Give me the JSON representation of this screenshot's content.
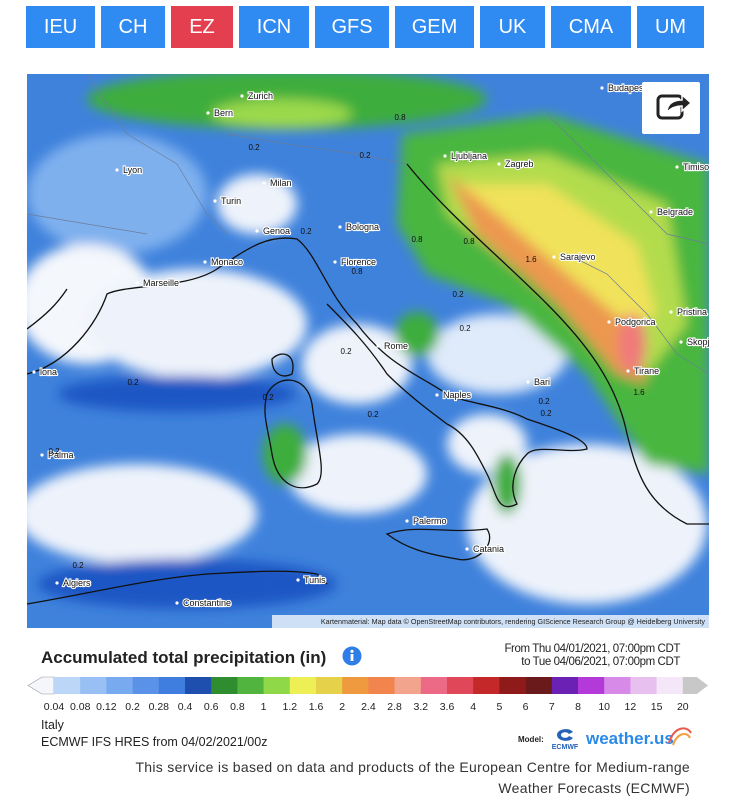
{
  "tabs": [
    {
      "label": "IEU",
      "active": false
    },
    {
      "label": "CH",
      "active": false
    },
    {
      "label": "EZ",
      "active": true
    },
    {
      "label": "ICN",
      "active": false
    },
    {
      "label": "GFS",
      "active": false
    },
    {
      "label": "GEM",
      "active": false
    },
    {
      "label": "UK",
      "active": false
    },
    {
      "label": "CMA",
      "active": false
    },
    {
      "label": "UM",
      "active": false
    }
  ],
  "map": {
    "cities": [
      "Budapest",
      "Zurich",
      "Bern",
      "Lyon",
      "Milan",
      "Turin",
      "Genoa",
      "Monaco",
      "Marseille",
      "Bologna",
      "Florence",
      "Ljubljana",
      "Zagreb",
      "Timisoara",
      "Belgrade",
      "Sarajevo",
      "Podgorica",
      "Pristina",
      "Skopje",
      "Tirane",
      "Rome",
      "Naples",
      "Bari",
      "lona",
      "Palma",
      "Palermo",
      "Catania",
      "Tunis",
      "Algiers",
      "Constantine"
    ],
    "value_labels": [
      "0.2",
      "0.2",
      "0.8",
      "0.2",
      "0.8",
      "0.8",
      "0.8",
      "1.6",
      "0.2",
      "0.2",
      "0.2",
      "0.2",
      "0.2",
      "0.2",
      "0.2",
      "0.2",
      "1.6",
      "0.2",
      "0.2"
    ],
    "attribution": "Kartenmaterial: Map data © OpenStreetMap contributors, rendering GIScience Research Group @ Heidelberg University"
  },
  "legend": {
    "title": "Accumulated total precipitation (in)",
    "from": "From Thu 04/01/2021, 07:00pm CDT",
    "to": "to Tue 04/06/2021, 07:00pm CDT",
    "labels": [
      "0.04",
      "0.08",
      "0.12",
      "0.2",
      "0.28",
      "0.4",
      "0.6",
      "0.8",
      "1",
      "1.2",
      "1.6",
      "2",
      "2.4",
      "2.8",
      "3.2",
      "3.6",
      "4",
      "5",
      "6",
      "7",
      "8",
      "10",
      "12",
      "15",
      "20"
    ],
    "colors": [
      "#f4f6fb",
      "#bcd6f8",
      "#98c0f4",
      "#78aaef",
      "#5a92e8",
      "#3f7ddf",
      "#1f4fae",
      "#2f8c2f",
      "#50b43e",
      "#8fd848",
      "#eeee55",
      "#e5d24a",
      "#ef9a3e",
      "#f2844e",
      "#f2a48c",
      "#ec6a86",
      "#e0485a",
      "#c42828",
      "#8e1a1a",
      "#6a1a1a",
      "#6b22b4",
      "#b33ad8",
      "#d78ae8",
      "#e8c0f0",
      "#f4e8f8",
      "#c8c8c8"
    ]
  },
  "footer": {
    "region": "Italy",
    "model_run": "ECMWF IFS HRES from 04/02/2021/00z",
    "model_label": "Model:",
    "model_logo": "ECMWF",
    "brand": "weather.us",
    "notice_lines": [
      "This service is based on data and products of the European Centre for Medium-range",
      "Weather Forecasts (ECMWF)"
    ]
  }
}
